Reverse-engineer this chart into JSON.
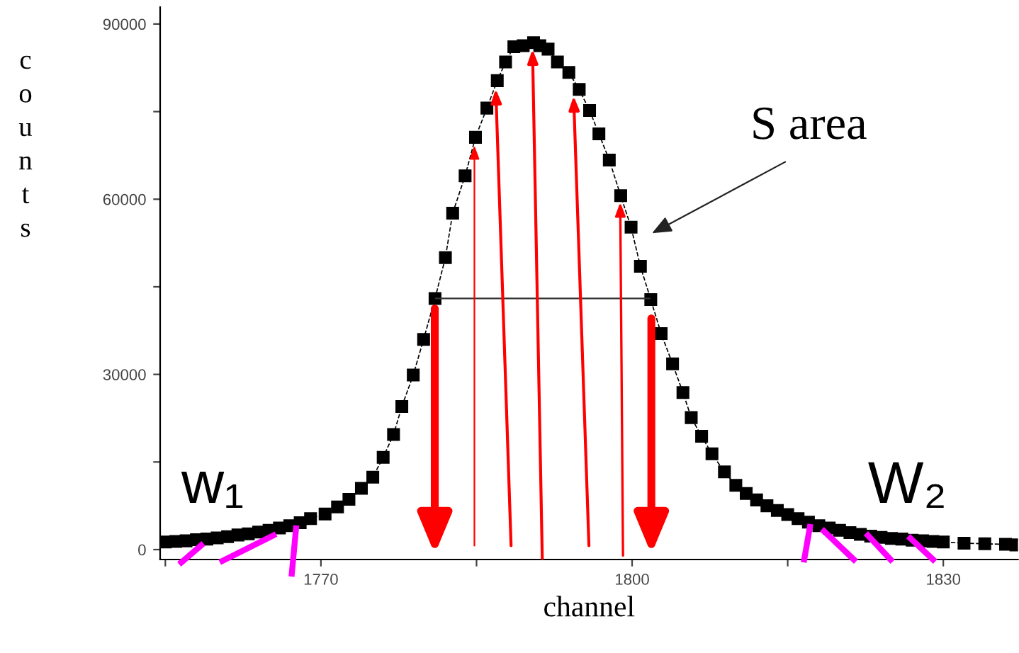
{
  "chart_data": {
    "type": "line",
    "xlabel": "channel",
    "ylabel": "counts",
    "marker": "square",
    "line_style": "dashed",
    "grid": false,
    "x": [
      1755,
      1756,
      1757,
      1758,
      1759,
      1760,
      1761,
      1762,
      1763,
      1764,
      1765,
      1766,
      1767,
      1768,
      1769,
      1770.4,
      1771.6,
      1772.7,
      1773.9,
      1775.0,
      1776.0,
      1777.0,
      1777.8,
      1778.9,
      1779.9,
      1781.0,
      1782.0,
      1782.7,
      1783.9,
      1784.9,
      1786.0,
      1787.0,
      1787.8,
      1788.6,
      1789.5,
      1790.5,
      1791.1,
      1791.9,
      1792.8,
      1793.9,
      1794.9,
      1795.9,
      1796.8,
      1797.8,
      1798.9,
      1799.9,
      1800.8,
      1801.8,
      1802.8,
      1803.9,
      1804.9,
      1805.7,
      1806.7,
      1807.7,
      1808.9,
      1810,
      1811,
      1812,
      1813,
      1814,
      1815,
      1816,
      1817,
      1818,
      1819,
      1820,
      1821,
      1822,
      1823,
      1824,
      1825,
      1826,
      1827,
      1828,
      1829,
      1830,
      1832,
      1834,
      1836,
      1837
    ],
    "series": [
      {
        "color": "#000000",
        "values": [
          1300,
          1400,
          1500,
          1700,
          1800,
          2000,
          2200,
          2500,
          2700,
          3000,
          3300,
          3700,
          4100,
          4600,
          5300,
          6100,
          7300,
          8600,
          10500,
          12400,
          15800,
          19700,
          24500,
          29900,
          36000,
          43000,
          50000,
          57600,
          64000,
          70600,
          75600,
          80300,
          83500,
          86100,
          86300,
          86800,
          86300,
          85700,
          83500,
          81700,
          78800,
          75200,
          71200,
          66700,
          60600,
          55200,
          48500,
          42800,
          37000,
          31800,
          26900,
          22600,
          19400,
          16400,
          13300,
          11000,
          9600,
          8500,
          7500,
          6700,
          6000,
          5300,
          4700,
          4100,
          3700,
          3300,
          2900,
          2600,
          2300,
          2100,
          1900,
          1800,
          1600,
          1500,
          1400,
          1300,
          1100,
          1000,
          900,
          800
        ]
      }
    ],
    "ref_lines": [
      {
        "axis": "y",
        "value": 43000,
        "color": "#333333"
      }
    ],
    "xlim": [
      1754.5,
      1837.2
    ],
    "ylim": [
      -1700,
      92900
    ],
    "xticks": [
      {
        "value": 1755,
        "label": null
      },
      1770,
      {
        "value": 1785,
        "label": null
      },
      1800,
      {
        "value": 1815,
        "label": null
      },
      1830
    ],
    "yticks": [
      0,
      {
        "value": 15000,
        "label": null
      },
      30000,
      {
        "value": 45000,
        "label": null
      },
      60000,
      {
        "value": 75000,
        "label": null
      },
      90000
    ],
    "annotations": [
      "S area",
      "w₁",
      "W₂"
    ]
  }
}
